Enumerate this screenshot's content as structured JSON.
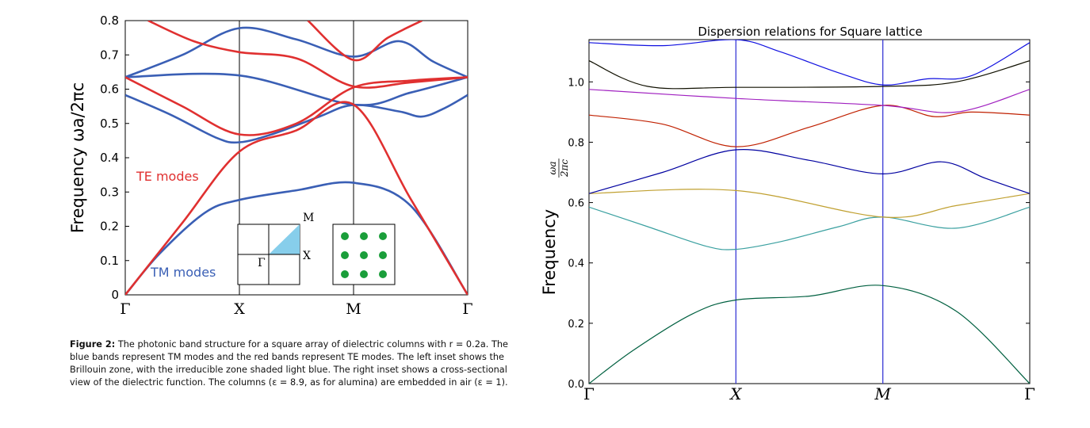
{
  "left_figure": {
    "caption_label": "Figure 2:",
    "caption_text": "The photonic band structure for a square array of dielectric columns with r = 0.2a. The blue bands represent TM modes and the red bands represent TE modes. The left inset shows the Brillouin zone, with the irreducible zone shaded light blue. The right inset shows a cross-sectional view of the dielectric function. The columns (ε = 8.9, as for alumina) are embedded in air (ε = 1).",
    "inset_labels": [
      "M",
      "X",
      "Γ"
    ]
  },
  "colors": {
    "tm": "#3a5fb5",
    "te": "#e03030",
    "te_label": "#e03030",
    "tm_label": "#3a5fb5",
    "inset_fill": "#87ceeb",
    "dots": "#1a9e3a",
    "right_vlines": "#3b3bd6"
  },
  "chart_data": [
    {
      "type": "line",
      "title": "",
      "ylabel": "Frequency  ωa/2πc",
      "xlabel": "",
      "ticks_x": [
        "Γ",
        "X",
        "M",
        "Γ"
      ],
      "ticks_y": [
        "0",
        "0.1",
        "0.2",
        "0.3",
        "0.4",
        "0.5",
        "0.6",
        "0.7",
        "0.8"
      ],
      "ylim": [
        0,
        0.8
      ],
      "annotations": [
        "TE modes",
        "TM modes"
      ],
      "x": [
        0,
        1,
        2,
        3
      ],
      "series": [
        {
          "name": "TM modes",
          "values": [
            [
              0,
              0
            ],
            [
              0.3,
              0.12
            ],
            [
              0.7,
              0.24
            ],
            [
              1,
              0.277
            ],
            [
              1.5,
              0.305
            ],
            [
              2,
              0.327
            ],
            [
              2.5,
              0.26
            ],
            [
              3,
              0
            ]
          ]
        },
        {
          "name": "TM modes",
          "values": [
            [
              0,
              0.583
            ],
            [
              0.4,
              0.525
            ],
            [
              0.8,
              0.458
            ],
            [
              1,
              0.445
            ],
            [
              1.3,
              0.47
            ],
            [
              1.7,
              0.52
            ],
            [
              2,
              0.554
            ],
            [
              2.4,
              0.535
            ],
            [
              2.6,
              0.52
            ],
            [
              2.8,
              0.545
            ],
            [
              3,
              0.583
            ]
          ]
        },
        {
          "name": "TM modes",
          "values": [
            [
              0,
              0.635
            ],
            [
              1,
              0.64
            ],
            [
              2,
              0.555
            ],
            [
              2.5,
              0.59
            ],
            [
              3,
              0.635
            ]
          ]
        },
        {
          "name": "TM modes",
          "values": [
            [
              0,
              0.635
            ],
            [
              0.5,
              0.7
            ],
            [
              1,
              0.778
            ],
            [
              1.5,
              0.745
            ],
            [
              2,
              0.695
            ],
            [
              2.4,
              0.74
            ],
            [
              2.7,
              0.68
            ],
            [
              3,
              0.635
            ]
          ]
        },
        {
          "name": "TE modes",
          "values": [
            [
              0,
              0
            ],
            [
              0.5,
              0.21
            ],
            [
              1,
              0.418
            ],
            [
              1.5,
              0.48
            ],
            [
              2,
              0.555
            ],
            [
              2.5,
              0.28
            ],
            [
              3,
              0
            ]
          ]
        },
        {
          "name": "TE modes",
          "values": [
            [
              0,
              0.635
            ],
            [
              0.5,
              0.55
            ],
            [
              1,
              0.468
            ],
            [
              1.5,
              0.5
            ],
            [
              2,
              0.605
            ],
            [
              2.5,
              0.625
            ],
            [
              3,
              0.635
            ]
          ]
        },
        {
          "name": "TE modes",
          "values": [
            [
              0.2,
              0.8
            ],
            [
              0.6,
              0.74
            ],
            [
              1,
              0.708
            ],
            [
              1.5,
              0.69
            ],
            [
              2,
              0.608
            ],
            [
              2.5,
              0.62
            ],
            [
              3,
              0.635
            ]
          ]
        },
        {
          "name": "TE modes",
          "values": [
            [
              1.6,
              0.8
            ],
            [
              2,
              0.685
            ],
            [
              2.3,
              0.75
            ],
            [
              2.6,
              0.8
            ]
          ]
        }
      ]
    },
    {
      "type": "line",
      "title": "Dispersion relations for Square lattice",
      "ylabel": "Frequency",
      "ylabel_fraction": {
        "num": "ωa",
        "den": "2πc"
      },
      "xlabel": "",
      "ticks_x": [
        "Γ",
        "X",
        "M",
        "Γ"
      ],
      "ticks_y": [
        "0.0",
        "0.2",
        "0.4",
        "0.6",
        "0.8",
        "1.0"
      ],
      "ylim": [
        0,
        1.14
      ],
      "x": [
        0,
        1,
        2,
        3
      ],
      "series": [
        {
          "color": "#006040",
          "values": [
            [
              0,
              0
            ],
            [
              0.3,
              0.11
            ],
            [
              0.7,
              0.23
            ],
            [
              1,
              0.277
            ],
            [
              1.5,
              0.29
            ],
            [
              2,
              0.325
            ],
            [
              2.5,
              0.24
            ],
            [
              3,
              0
            ]
          ]
        },
        {
          "color": "#3aa0a0",
          "values": [
            [
              0,
              0.585
            ],
            [
              0.4,
              0.52
            ],
            [
              0.8,
              0.455
            ],
            [
              1,
              0.445
            ],
            [
              1.3,
              0.47
            ],
            [
              1.7,
              0.52
            ],
            [
              2,
              0.552
            ],
            [
              2.5,
              0.515
            ],
            [
              3,
              0.585
            ]
          ]
        },
        {
          "color": "#c0a030",
          "values": [
            [
              0,
              0.63
            ],
            [
              1,
              0.64
            ],
            [
              2,
              0.552
            ],
            [
              2.5,
              0.59
            ],
            [
              3,
              0.63
            ]
          ]
        },
        {
          "color": "#0000a0",
          "values": [
            [
              0,
              0.63
            ],
            [
              0.5,
              0.7
            ],
            [
              1,
              0.775
            ],
            [
              1.5,
              0.74
            ],
            [
              2,
              0.695
            ],
            [
              2.4,
              0.735
            ],
            [
              2.7,
              0.68
            ],
            [
              3,
              0.63
            ]
          ]
        },
        {
          "color": "#c02000",
          "values": [
            [
              0,
              0.89
            ],
            [
              0.5,
              0.86
            ],
            [
              1,
              0.785
            ],
            [
              1.5,
              0.85
            ],
            [
              2,
              0.922
            ],
            [
              2.35,
              0.885
            ],
            [
              2.6,
              0.9
            ],
            [
              3,
              0.89
            ]
          ]
        },
        {
          "color": "#a020c0",
          "values": [
            [
              0,
              0.975
            ],
            [
              1,
              0.945
            ],
            [
              2,
              0.922
            ],
            [
              2.5,
              0.9
            ],
            [
              3,
              0.975
            ]
          ]
        },
        {
          "color": "#101000",
          "values": [
            [
              0,
              1.07
            ],
            [
              0.4,
              0.985
            ],
            [
              1,
              0.982
            ],
            [
              2,
              0.985
            ],
            [
              2.5,
              1.0
            ],
            [
              3,
              1.07
            ]
          ]
        },
        {
          "color": "#1010e0",
          "values": [
            [
              0,
              1.13
            ],
            [
              0.5,
              1.12
            ],
            [
              1,
              1.14
            ],
            [
              1.3,
              1.1
            ],
            [
              1.7,
              1.03
            ],
            [
              2,
              0.99
            ],
            [
              2.3,
              1.01
            ],
            [
              2.6,
              1.02
            ],
            [
              3,
              1.13
            ]
          ]
        }
      ]
    }
  ]
}
